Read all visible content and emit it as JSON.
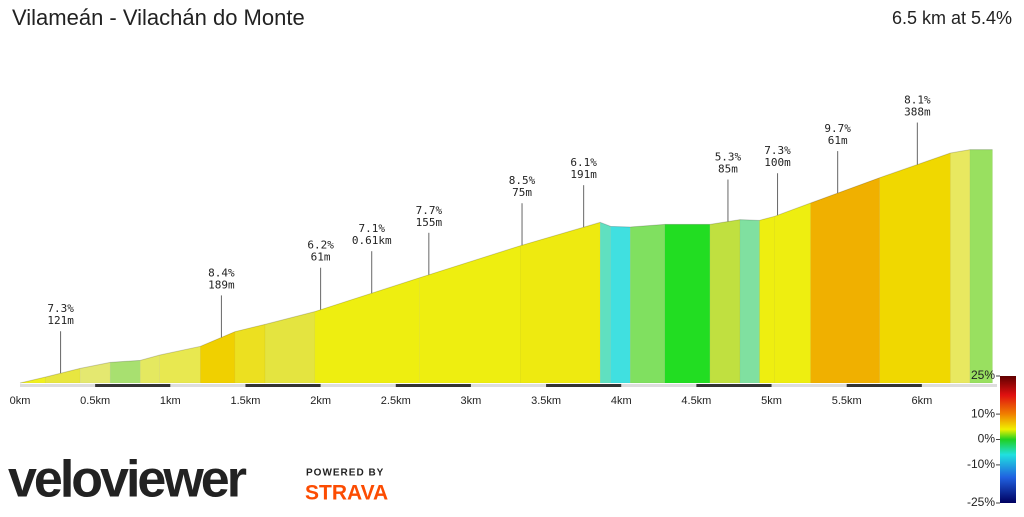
{
  "chart_data": {
    "type": "elevation-profile",
    "title": "Vilameán - Vilachán do Monte",
    "summary": "6.5 km at 5.4%",
    "x": [
      0,
      0.17,
      0.4,
      0.6,
      0.8,
      0.93,
      1.2,
      1.43,
      1.63,
      1.96,
      2.66,
      3.33,
      3.86,
      3.93,
      4.06,
      4.29,
      4.59,
      4.79,
      4.92,
      5.02,
      5.26,
      5.72,
      6.19,
      6.32,
      6.47
    ],
    "elevation": [
      0,
      9,
      22,
      31,
      34,
      42,
      55,
      77,
      88,
      107,
      158,
      206,
      241,
      235,
      234,
      238,
      238,
      245,
      244,
      250,
      270,
      308,
      345,
      350,
      350
    ],
    "colors": [
      "#f0f020",
      "#e8e640",
      "#e4e870",
      "#a8e070",
      "#e4e860",
      "#e8e850",
      "#f0d000",
      "#ece020",
      "#e4e440",
      "#eeee10",
      "#eeee10",
      "#eeea10",
      "#60e0c0",
      "#40e0e0",
      "#80e060",
      "#22dd22",
      "#c0e040",
      "#80e0a0",
      "#eeee10",
      "#eeee10",
      "#f0b000",
      "#f0d800",
      "#e8e860",
      "#99e060",
      "#44dd44"
    ],
    "xlim": [
      0,
      6.5
    ],
    "ylim": [
      0,
      360
    ],
    "xticks": [
      {
        "value": 0,
        "label": "0km"
      },
      {
        "value": 0.5,
        "label": "0.5km"
      },
      {
        "value": 1,
        "label": "1km"
      },
      {
        "value": 1.5,
        "label": "1.5km"
      },
      {
        "value": 2,
        "label": "2km"
      },
      {
        "value": 2.5,
        "label": "2.5km"
      },
      {
        "value": 3,
        "label": "3km"
      },
      {
        "value": 3.5,
        "label": "3.5km"
      },
      {
        "value": 4,
        "label": "4km"
      },
      {
        "value": 4.5,
        "label": "4.5km"
      },
      {
        "value": 5,
        "label": "5km"
      },
      {
        "value": 5.5,
        "label": "5.5km"
      },
      {
        "value": 6,
        "label": "6km"
      }
    ],
    "annotations": [
      {
        "x": 0.27,
        "grade": "7.3%",
        "length": "121m"
      },
      {
        "x": 1.34,
        "grade": "8.4%",
        "length": "189m"
      },
      {
        "x": 2.0,
        "grade": "6.2%",
        "length": "61m"
      },
      {
        "x": 2.34,
        "grade": "7.1%",
        "length": "0.61km"
      },
      {
        "x": 2.72,
        "grade": "7.7%",
        "length": "155m"
      },
      {
        "x": 3.34,
        "grade": "8.5%",
        "length": "75m"
      },
      {
        "x": 3.75,
        "grade": "6.1%",
        "length": "191m"
      },
      {
        "x": 4.71,
        "grade": "5.3%",
        "length": "85m"
      },
      {
        "x": 5.04,
        "grade": "7.3%",
        "length": "100m"
      },
      {
        "x": 5.44,
        "grade": "9.7%",
        "length": "61m"
      },
      {
        "x": 5.97,
        "grade": "8.1%",
        "length": "388m"
      }
    ],
    "colorbar": {
      "lim": [
        -25,
        25
      ],
      "ticks": [
        {
          "value": 25,
          "label": "25%"
        },
        {
          "value": 10,
          "label": "10%"
        },
        {
          "value": 0,
          "label": "0%"
        },
        {
          "value": -10,
          "label": "-10%"
        },
        {
          "value": -25,
          "label": "-25%"
        }
      ]
    },
    "branding": {
      "logo": "veloviewer",
      "powered": "POWERED BY",
      "strava": "STRAVA"
    }
  }
}
